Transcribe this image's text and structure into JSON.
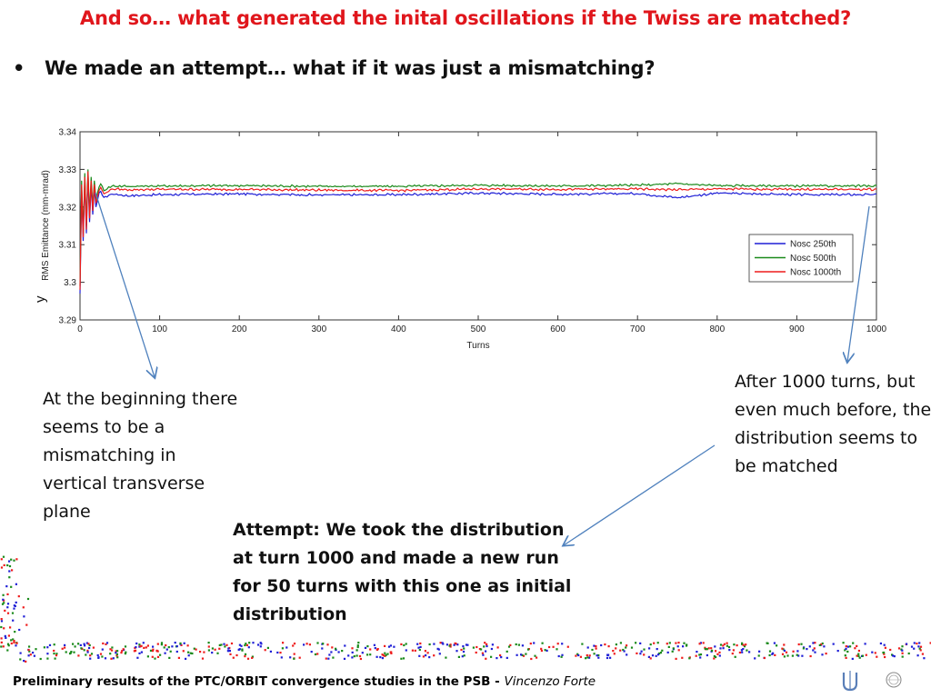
{
  "slide": {
    "title": "And so… what generated the inital oscillations if the Twiss are matched?",
    "bullet_symbol": "•",
    "bullet_text": "We made an attempt… what if it was just a mismatching?",
    "note_left": "At the beginning there seems to be a mismatching in vertical transverse plane",
    "note_right": "After 1000 turns, but even much before, the distribution seems to be matched",
    "note_attempt": "Attempt: We took the distribution at turn 1000 and made a new run for 50 turns with this one as initial distribution",
    "footer_bold": "Preliminary results of the PTC/ORBIT convergence studies in the PSB - ",
    "footer_italic": "Vincenzo Forte"
  },
  "colors": {
    "title": "#e0161c",
    "arrow": "#4f81bd",
    "series_blue": "#1f1fd6",
    "series_green": "#1a8a1a",
    "series_red": "#ee1c1c"
  },
  "icons": {
    "footer_left_logo": "psb-logo-icon",
    "footer_right_logo": "cern-logo-icon"
  },
  "chart_data": {
    "type": "line",
    "title": "",
    "xlabel": "Turns",
    "ylabel": "RMS Emittance (mm-mrad)",
    "ylabel_prefix": "y",
    "xlim": [
      0,
      1000
    ],
    "ylim": [
      3.29,
      3.34
    ],
    "xticks": [
      "0",
      "100",
      "200",
      "300",
      "400",
      "500",
      "600",
      "700",
      "800",
      "900",
      "1000"
    ],
    "yticks": [
      "3.29",
      "3.3",
      "3.31",
      "3.32",
      "3.33",
      "3.34"
    ],
    "grid": false,
    "legend_position": "right",
    "series": [
      {
        "name": "Nosc 250th",
        "color": "#1f1fd6",
        "x": [
          0,
          2,
          4,
          6,
          8,
          10,
          12,
          14,
          16,
          18,
          20,
          25,
          30,
          40,
          60,
          100,
          200,
          300,
          400,
          500,
          600,
          700,
          750,
          800,
          900,
          1000
        ],
        "y": [
          3.297,
          3.325,
          3.311,
          3.327,
          3.313,
          3.328,
          3.316,
          3.326,
          3.318,
          3.325,
          3.32,
          3.3245,
          3.3225,
          3.3235,
          3.323,
          3.3233,
          3.3235,
          3.3232,
          3.3233,
          3.3237,
          3.3234,
          3.3236,
          3.3225,
          3.3237,
          3.3233,
          3.3233
        ]
      },
      {
        "name": "Nosc 500th",
        "color": "#1a8a1a",
        "x": [
          0,
          2,
          4,
          6,
          8,
          10,
          12,
          14,
          16,
          18,
          20,
          25,
          30,
          40,
          60,
          100,
          200,
          300,
          400,
          500,
          600,
          700,
          750,
          800,
          900,
          1000
        ],
        "y": [
          3.299,
          3.327,
          3.313,
          3.329,
          3.315,
          3.33,
          3.318,
          3.328,
          3.32,
          3.327,
          3.322,
          3.3265,
          3.3245,
          3.3256,
          3.3255,
          3.3256,
          3.3257,
          3.3255,
          3.3255,
          3.3258,
          3.3256,
          3.3258,
          3.3262,
          3.3257,
          3.3256,
          3.3256
        ]
      },
      {
        "name": "Nosc 1000th",
        "color": "#ee1c1c",
        "x": [
          0,
          2,
          4,
          6,
          8,
          10,
          12,
          14,
          16,
          18,
          20,
          25,
          30,
          40,
          60,
          100,
          200,
          300,
          400,
          500,
          600,
          700,
          750,
          800,
          900,
          1000
        ],
        "y": [
          3.298,
          3.326,
          3.312,
          3.328,
          3.314,
          3.3295,
          3.317,
          3.327,
          3.319,
          3.326,
          3.321,
          3.3255,
          3.3235,
          3.3248,
          3.3246,
          3.3247,
          3.3247,
          3.3245,
          3.3244,
          3.3248,
          3.3247,
          3.3248,
          3.3246,
          3.3248,
          3.3247,
          3.3247
        ]
      }
    ]
  }
}
